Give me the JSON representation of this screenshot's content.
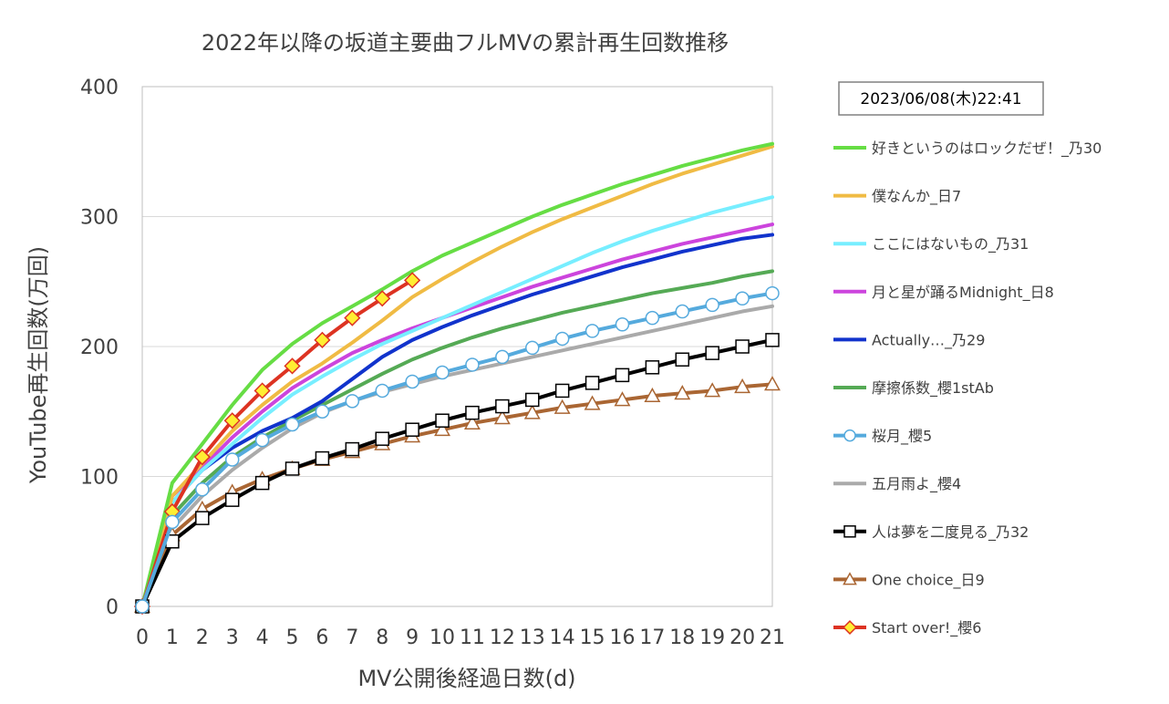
{
  "chart_data": {
    "type": "line",
    "title": "2022年以降の坂道主要曲フルMVの累計再生回数推移",
    "xlabel": "MV公開後経過日数(d)",
    "ylabel": "YouTube再生回数(万回)",
    "timestamp": "2023/06/08(木)22:41",
    "ylim": [
      0,
      400
    ],
    "xlim": [
      0,
      21
    ],
    "x_ticks": [
      "0",
      "1",
      "2",
      "3",
      "4",
      "5",
      "6",
      "7",
      "8",
      "9",
      "10",
      "11",
      "12",
      "13",
      "14",
      "15",
      "16",
      "17",
      "18",
      "19",
      "20",
      "21"
    ],
    "y_ticks": [
      "0",
      "100",
      "200",
      "300",
      "400"
    ],
    "grid": "horizontal",
    "legend_position": "right",
    "series": [
      {
        "name": "好きというのはロックだぜ！_乃30",
        "color": "#66dd44",
        "marker": "none",
        "values": [
          0,
          95,
          125,
          155,
          182,
          202,
          218,
          231,
          244,
          258,
          270,
          280,
          290,
          300,
          309,
          317,
          325,
          332,
          339,
          345,
          351,
          356
        ]
      },
      {
        "name": "僕なんか_日7",
        "color": "#f0bb44",
        "marker": "none",
        "values": [
          0,
          85,
          110,
          135,
          155,
          173,
          187,
          203,
          220,
          238,
          252,
          265,
          277,
          288,
          298,
          307,
          316,
          325,
          333,
          340,
          347,
          354
        ]
      },
      {
        "name": "ここにはないもの_乃31",
        "color": "#77eeff",
        "marker": "none",
        "values": [
          0,
          80,
          105,
          125,
          145,
          163,
          177,
          190,
          202,
          212,
          222,
          232,
          242,
          252,
          262,
          272,
          281,
          289,
          296,
          303,
          309,
          315
        ]
      },
      {
        "name": "月と星が踊るMidnight_日8",
        "color": "#cc44dd",
        "marker": "none",
        "values": [
          0,
          85,
          107,
          130,
          150,
          168,
          182,
          195,
          205,
          214,
          222,
          230,
          238,
          246,
          253,
          260,
          267,
          273,
          279,
          284,
          289,
          294
        ]
      },
      {
        "name": "Actually…_乃29",
        "color": "#1133cc",
        "marker": "none",
        "values": [
          0,
          80,
          105,
          122,
          135,
          145,
          158,
          175,
          192,
          205,
          215,
          224,
          232,
          240,
          247,
          254,
          261,
          267,
          273,
          278,
          283,
          286
        ]
      },
      {
        "name": "摩擦係数_櫻1stAb",
        "color": "#55aa55",
        "marker": "none",
        "values": [
          0,
          70,
          95,
          115,
          130,
          143,
          155,
          167,
          179,
          190,
          199,
          207,
          214,
          220,
          226,
          231,
          236,
          241,
          245,
          249,
          254,
          258
        ]
      },
      {
        "name": "桜月_櫻5",
        "color": "#55aadd",
        "marker": "circle",
        "values": [
          0,
          65,
          90,
          113,
          128,
          140,
          150,
          158,
          166,
          173,
          180,
          186,
          192,
          199,
          206,
          212,
          217,
          222,
          227,
          232,
          237,
          241
        ]
      },
      {
        "name": "五月雨よ_櫻4",
        "color": "#aaaaaa",
        "marker": "none",
        "values": [
          0,
          60,
          85,
          105,
          122,
          137,
          149,
          158,
          165,
          171,
          177,
          182,
          187,
          192,
          197,
          202,
          207,
          212,
          217,
          222,
          227,
          231
        ]
      },
      {
        "name": "人は夢を二度見る_乃32",
        "color": "#000000",
        "marker": "square",
        "values": [
          0,
          50,
          68,
          82,
          95,
          106,
          114,
          121,
          129,
          136,
          143,
          149,
          154,
          159,
          166,
          172,
          178,
          184,
          190,
          195,
          200,
          205
        ]
      },
      {
        "name": "One choice_日9",
        "color": "#aa6633",
        "marker": "triangle",
        "values": [
          0,
          55,
          75,
          88,
          98,
          106,
          113,
          119,
          125,
          131,
          136,
          141,
          145,
          149,
          153,
          156,
          159,
          162,
          164,
          166,
          169,
          171
        ]
      },
      {
        "name": "Start over!_櫻6",
        "color": "#dd3322",
        "marker": "diamond",
        "values": [
          0,
          73,
          115,
          143,
          166,
          185,
          205,
          222,
          237,
          251
        ]
      }
    ]
  }
}
